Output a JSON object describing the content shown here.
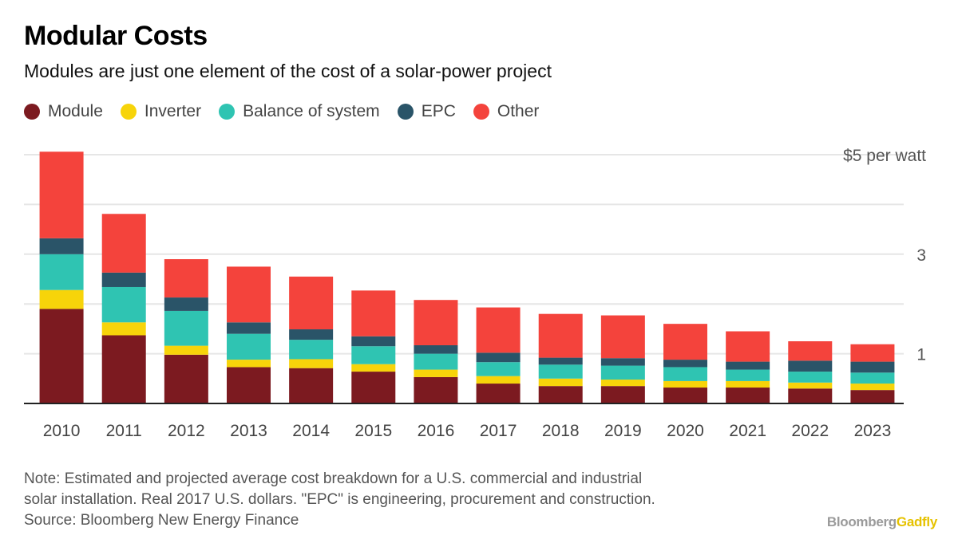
{
  "title": "Modular Costs",
  "subtitle": "Modules are just one element of the cost of a solar-power project",
  "colors": {
    "Module": "#7c1a20",
    "Inverter": "#f7d40a",
    "Balance of system": "#2fc4b2",
    "EPC": "#2a5468",
    "Other": "#f4433c"
  },
  "chart_data": {
    "type": "bar",
    "stacked": true,
    "categories": [
      "2010",
      "2011",
      "2012",
      "2013",
      "2014",
      "2015",
      "2016",
      "2017",
      "2018",
      "2019",
      "2020",
      "2021",
      "2022",
      "2023"
    ],
    "series": [
      {
        "name": "Module",
        "values": [
          1.9,
          1.37,
          0.98,
          0.73,
          0.71,
          0.64,
          0.53,
          0.4,
          0.35,
          0.35,
          0.32,
          0.32,
          0.3,
          0.27
        ]
      },
      {
        "name": "Inverter",
        "values": [
          0.38,
          0.26,
          0.18,
          0.15,
          0.18,
          0.15,
          0.15,
          0.15,
          0.15,
          0.13,
          0.13,
          0.13,
          0.12,
          0.13
        ]
      },
      {
        "name": "Balance of system",
        "values": [
          0.72,
          0.71,
          0.7,
          0.52,
          0.39,
          0.36,
          0.32,
          0.28,
          0.28,
          0.28,
          0.28,
          0.23,
          0.22,
          0.22
        ]
      },
      {
        "name": "EPC",
        "values": [
          0.32,
          0.29,
          0.27,
          0.23,
          0.21,
          0.2,
          0.17,
          0.19,
          0.14,
          0.15,
          0.15,
          0.16,
          0.22,
          0.22
        ]
      },
      {
        "name": "Other",
        "values": [
          1.74,
          1.18,
          0.77,
          1.12,
          1.06,
          0.92,
          0.91,
          0.91,
          0.88,
          0.86,
          0.72,
          0.61,
          0.39,
          0.35
        ]
      }
    ],
    "ylim": [
      0,
      5
    ],
    "y_ticks": [
      1,
      2,
      3,
      4,
      5
    ],
    "y_tick_labels": [
      "1",
      "",
      "3",
      "",
      "$5 per watt"
    ],
    "axis_side": "right",
    "grid": true
  },
  "note": {
    "line1": "Note: Estimated and projected average cost breakdown for a U.S. commercial and industrial",
    "line2": "solar installation. Real 2017 U.S. dollars. \"EPC\" is engineering, procurement and construction.",
    "line3": "Source: Bloomberg New Energy Finance"
  },
  "brand": {
    "part1": "Bloomberg",
    "part2": "Gadfly"
  }
}
